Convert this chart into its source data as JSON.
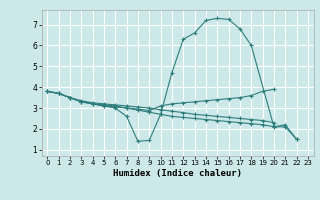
{
  "title": "",
  "xlabel": "Humidex (Indice chaleur)",
  "background_color": "#cce8e8",
  "grid_color": "#ffffff",
  "line_color": "#2e7d7d",
  "xlim": [
    -0.5,
    23.5
  ],
  "ylim": [
    0.7,
    7.7
  ],
  "xticks": [
    0,
    1,
    2,
    3,
    4,
    5,
    6,
    7,
    8,
    9,
    10,
    11,
    12,
    13,
    14,
    15,
    16,
    17,
    18,
    19,
    20,
    21,
    22,
    23
  ],
  "yticks": [
    1,
    2,
    3,
    4,
    5,
    6,
    7
  ],
  "line1_x": [
    0,
    1,
    2,
    3,
    4,
    5,
    6,
    7,
    8,
    9,
    10,
    11,
    12,
    13,
    14,
    15,
    16,
    17,
    18,
    20,
    21,
    22
  ],
  "line1_y": [
    3.8,
    3.7,
    3.5,
    3.3,
    3.2,
    3.1,
    3.0,
    2.6,
    1.4,
    1.45,
    2.7,
    4.7,
    6.3,
    6.6,
    7.2,
    7.3,
    7.25,
    6.8,
    6.0,
    2.1,
    2.2,
    1.5
  ],
  "line2_x": [
    0,
    1,
    2,
    3,
    4,
    5,
    6,
    7,
    8,
    9,
    10,
    11,
    12,
    13,
    14,
    15,
    16,
    17,
    18,
    19,
    20
  ],
  "line2_y": [
    3.8,
    3.7,
    3.5,
    3.35,
    3.25,
    3.2,
    3.15,
    3.1,
    3.05,
    3.0,
    2.92,
    2.85,
    2.78,
    2.7,
    2.65,
    2.6,
    2.55,
    2.5,
    2.45,
    2.4,
    2.3
  ],
  "line3_x": [
    0,
    1,
    2,
    3,
    4,
    5,
    6,
    7,
    8,
    9,
    10,
    11,
    12,
    13,
    14,
    15,
    16,
    17,
    18,
    19,
    20,
    21,
    22
  ],
  "line3_y": [
    3.8,
    3.7,
    3.5,
    3.3,
    3.2,
    3.1,
    3.05,
    3.0,
    2.9,
    2.8,
    2.7,
    2.6,
    2.55,
    2.5,
    2.45,
    2.4,
    2.35,
    2.3,
    2.25,
    2.2,
    2.1,
    2.1,
    1.5
  ],
  "line4_x": [
    0,
    1,
    2,
    3,
    4,
    5,
    6,
    7,
    8,
    9,
    10,
    11,
    12,
    13,
    14,
    15,
    16,
    17,
    18,
    19,
    20
  ],
  "line4_y": [
    3.8,
    3.7,
    3.5,
    3.3,
    3.2,
    3.15,
    3.1,
    3.0,
    2.95,
    2.88,
    3.1,
    3.2,
    3.25,
    3.3,
    3.35,
    3.4,
    3.45,
    3.5,
    3.6,
    3.8,
    3.9
  ]
}
